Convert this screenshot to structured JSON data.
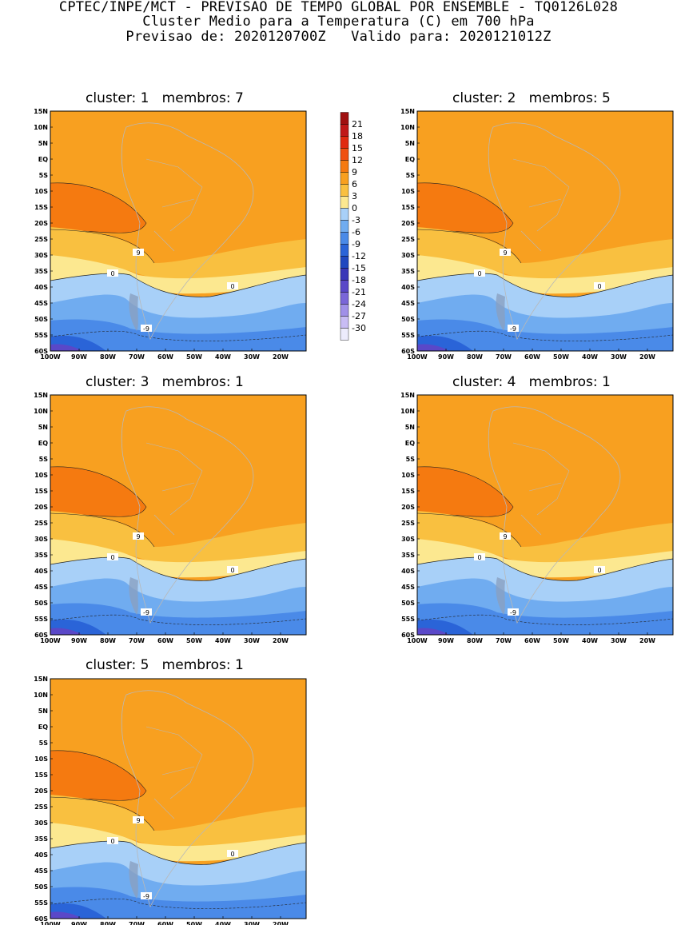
{
  "header": {
    "line1": "CPTEC/INPE/MCT - PREVISAO DE TEMPO GLOBAL POR ENSEMBLE - TQ0126L028",
    "line2": "Cluster Medio para a Temperatura (C) em 700 hPa",
    "line3": "Previsao de: 2020120700Z   Valido para: 2020121012Z"
  },
  "axes": {
    "lat_labels": [
      "15N",
      "10N",
      "5N",
      "EQ",
      "5S",
      "10S",
      "15S",
      "20S",
      "25S",
      "30S",
      "35S",
      "40S",
      "45S",
      "50S",
      "55S",
      "60S"
    ],
    "lon_labels": [
      "100W",
      "90W",
      "80W",
      "70W",
      "60W",
      "50W",
      "40W",
      "30W",
      "20W"
    ]
  },
  "legend": {
    "levels": [
      "21",
      "18",
      "15",
      "12",
      "9",
      "6",
      "3",
      "0",
      "-3",
      "-6",
      "-9",
      "-12",
      "-15",
      "-18",
      "-21",
      "-24",
      "-27",
      "-30"
    ],
    "colors": [
      "#a01010",
      "#c01818",
      "#e02a10",
      "#f05010",
      "#f57a10",
      "#f8a020",
      "#f9c040",
      "#fce890",
      "#a8d0f8",
      "#70acf0",
      "#4a8ae8",
      "#2a64d8",
      "#2048c0",
      "#3a38b8",
      "#5a48c8",
      "#7a66d8",
      "#a090e8",
      "#c8bcf4",
      "#ecebfc"
    ]
  },
  "panels": [
    {
      "title": "cluster: 1   membros: 7"
    },
    {
      "title": "cluster: 2   membros: 5"
    },
    {
      "title": "cluster: 3   membros: 1"
    },
    {
      "title": "cluster: 4   membros: 1"
    },
    {
      "title": "cluster: 5   membros: 1"
    }
  ],
  "contour_labels": {
    "nine": "9",
    "zero": "0",
    "minus_nine": "-9"
  }
}
